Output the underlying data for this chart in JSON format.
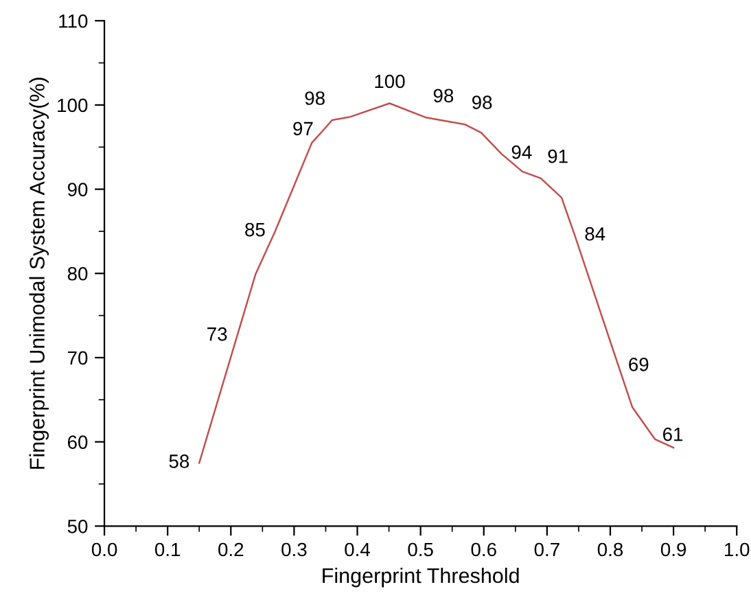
{
  "chart_data": {
    "type": "line",
    "xlabel": "Fingerprint Threshold",
    "ylabel": "Fingerprint Unimodal System Accuracy(%)",
    "series": [
      {
        "color": "#c0504d",
        "x": [
          0.15,
          0.21,
          0.239,
          0.27,
          0.328,
          0.346,
          0.36,
          0.389,
          0.451,
          0.509,
          0.57,
          0.596,
          0.628,
          0.661,
          0.69,
          0.723,
          0.744,
          0.813,
          0.835,
          0.867,
          0.871,
          0.9
        ],
        "values": [
          57.5,
          72.6,
          79.9,
          85,
          95.5,
          97,
          98.2,
          98.6,
          100.2,
          98.5,
          97.7,
          96.7,
          94.2,
          92.1,
          91.3,
          89,
          84.5,
          69,
          64.1,
          60.7,
          60.3,
          59.3
        ],
        "value_labels": [
          "58",
          "73",
          null,
          "85",
          null,
          "97",
          "98",
          null,
          "100",
          "98",
          "98",
          null,
          "94",
          null,
          "91",
          null,
          "84",
          "69",
          null,
          "61",
          null,
          null
        ]
      }
    ],
    "xlim": [
      0,
      1
    ],
    "ylim": [
      50,
      110
    ],
    "xticks": [
      {
        "value": 0,
        "label": "0.0"
      },
      0.1,
      0.2,
      0.3,
      0.4,
      0.5,
      0.6,
      0.7,
      0.8,
      0.9,
      {
        "value": 1,
        "label": "1.0"
      }
    ],
    "yticks": [
      50,
      60,
      70,
      80,
      90,
      100,
      110
    ],
    "grid": false,
    "legend": false,
    "marker": "none",
    "line_style": "solid"
  }
}
